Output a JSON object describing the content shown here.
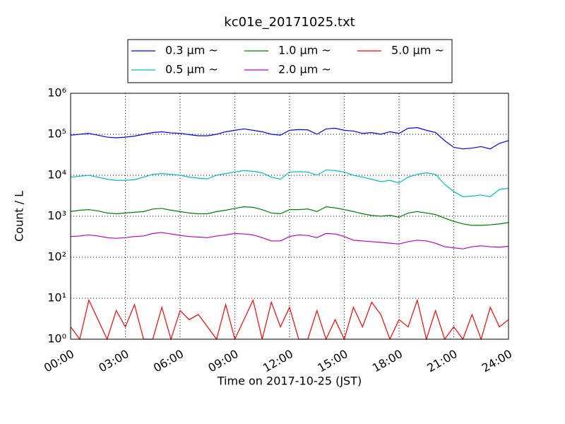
{
  "chart_data": {
    "type": "line",
    "title": "kc01e_20171025.txt",
    "x_label": "Time on 2017-10-25 (JST)",
    "y_label": "Count / L",
    "yscale": "log",
    "grid": true,
    "legend": "top",
    "xlim": [
      0,
      24
    ],
    "xticks": [
      {
        "value": 0,
        "label": "00:00"
      },
      {
        "value": 3,
        "label": "03:00"
      },
      {
        "value": 6,
        "label": "06:00"
      },
      {
        "value": 9,
        "label": "09:00"
      },
      {
        "value": 12,
        "label": "12:00"
      },
      {
        "value": 15,
        "label": "15:00"
      },
      {
        "value": 18,
        "label": "18:00"
      },
      {
        "value": 21,
        "label": "21:00"
      },
      {
        "value": 24,
        "label": "24:00"
      }
    ],
    "ylim": [
      1,
      1000000
    ],
    "yticks": [
      {
        "value": 1,
        "label": "10⁰"
      },
      {
        "value": 10,
        "label": "10¹"
      },
      {
        "value": 100,
        "label": "10²"
      },
      {
        "value": 1000,
        "label": "10³"
      },
      {
        "value": 10000,
        "label": "10⁴"
      },
      {
        "value": 100000,
        "label": "10⁵"
      },
      {
        "value": 1000000,
        "label": "10⁶"
      }
    ],
    "x": [
      0,
      0.5,
      1,
      1.5,
      2,
      2.5,
      3,
      3.5,
      4,
      4.5,
      5,
      5.5,
      6,
      6.5,
      7,
      7.5,
      8,
      8.5,
      9,
      9.5,
      10,
      10.5,
      11,
      11.5,
      12,
      12.5,
      13,
      13.5,
      14,
      14.5,
      15,
      15.5,
      16,
      16.5,
      17,
      17.5,
      18,
      18.5,
      19,
      19.5,
      20,
      20.5,
      21,
      21.5,
      22,
      22.5,
      23,
      23.5,
      24
    ],
    "series": [
      {
        "name": "0.3 μm ~",
        "color": "#0000ff",
        "values": [
          95000,
          100000,
          105000,
          95000,
          85000,
          82000,
          85000,
          90000,
          100000,
          110000,
          115000,
          108000,
          105000,
          98000,
          92000,
          92000,
          100000,
          115000,
          125000,
          135000,
          125000,
          115000,
          100000,
          95000,
          125000,
          130000,
          128000,
          100000,
          135000,
          140000,
          125000,
          120000,
          105000,
          110000,
          100000,
          115000,
          105000,
          140000,
          145000,
          125000,
          110000,
          70000,
          48000,
          44000,
          46000,
          50000,
          44000,
          60000,
          70000
        ]
      },
      {
        "name": "0.5 μm ~",
        "color": "#00bfbf",
        "values": [
          9000,
          9500,
          10000,
          9000,
          8000,
          7500,
          7500,
          7800,
          9000,
          10500,
          11000,
          10500,
          10000,
          9000,
          8500,
          8200,
          10000,
          11000,
          12000,
          13000,
          12500,
          11500,
          9000,
          8000,
          12000,
          12200,
          12000,
          10000,
          13500,
          13000,
          12000,
          10000,
          9000,
          8000,
          7000,
          7500,
          6500,
          9000,
          10500,
          11500,
          10500,
          6000,
          4000,
          3000,
          3100,
          3300,
          3000,
          4500,
          4800
        ]
      },
      {
        "name": "1.0 μm ~",
        "color": "#008000",
        "values": [
          1300,
          1400,
          1450,
          1350,
          1200,
          1150,
          1200,
          1250,
          1300,
          1500,
          1550,
          1400,
          1300,
          1200,
          1150,
          1150,
          1300,
          1400,
          1550,
          1700,
          1650,
          1450,
          1200,
          1150,
          1450,
          1450,
          1500,
          1300,
          1700,
          1600,
          1450,
          1300,
          1150,
          1050,
          1000,
          1050,
          950,
          1200,
          1300,
          1200,
          1100,
          900,
          750,
          650,
          600,
          600,
          620,
          650,
          700
        ]
      },
      {
        "name": "2.0 μm ~",
        "color": "#bf00bf",
        "values": [
          320,
          330,
          350,
          330,
          300,
          290,
          300,
          320,
          330,
          380,
          400,
          370,
          340,
          320,
          310,
          300,
          330,
          350,
          380,
          370,
          350,
          300,
          250,
          250,
          320,
          350,
          340,
          300,
          380,
          370,
          320,
          260,
          250,
          240,
          230,
          220,
          210,
          240,
          260,
          250,
          220,
          180,
          170,
          160,
          180,
          190,
          180,
          175,
          185
        ]
      },
      {
        "name": "5.0 μm ~",
        "color": "#ff0000",
        "values": [
          2,
          1,
          9,
          3,
          1,
          5,
          2,
          7,
          1,
          1,
          6,
          1,
          5,
          3,
          4,
          2,
          1,
          7,
          1,
          3,
          9,
          1,
          8,
          2,
          6,
          1,
          1,
          5,
          1,
          3,
          1,
          6,
          2,
          8,
          4,
          1,
          3,
          2,
          9,
          1,
          5,
          1,
          2,
          1,
          4,
          1,
          6,
          2,
          3
        ]
      }
    ]
  }
}
